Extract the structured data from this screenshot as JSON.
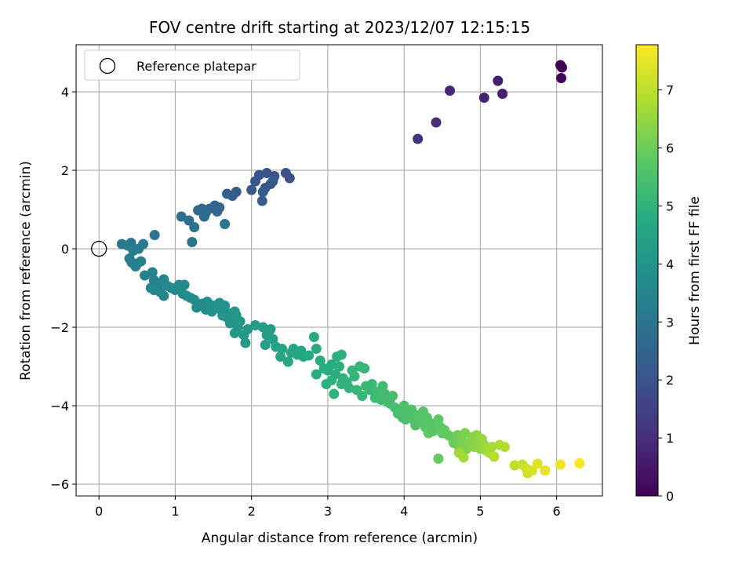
{
  "chart_data": {
    "type": "scatter",
    "title": "FOV centre drift starting at 2023/12/07 12:15:15",
    "xlabel": "Angular distance from reference (arcmin)",
    "ylabel": "Rotation from reference (arcmin)",
    "xlim": [
      -0.3,
      6.6
    ],
    "ylim": [
      -6.3,
      5.2
    ],
    "xticks": [
      0,
      1,
      2,
      3,
      4,
      5,
      6
    ],
    "yticks": [
      -6,
      -4,
      -2,
      0,
      2,
      4
    ],
    "grid": true,
    "colormap": "viridis",
    "colorbar": {
      "label": "Hours from first FF file",
      "range": [
        0,
        7.78
      ],
      "ticks": [
        0,
        1,
        2,
        3,
        4,
        5,
        6,
        7
      ]
    },
    "legend": {
      "placement": "top-left",
      "entries": [
        {
          "label": "Reference platepar",
          "marker": "open-circle",
          "color": "#000000"
        }
      ]
    },
    "reference_point": {
      "x": 0,
      "y": 0
    },
    "points": [
      [
        6.05,
        4.68,
        0.0
      ],
      [
        6.07,
        4.62,
        0.03
      ],
      [
        6.06,
        4.35,
        0.08
      ],
      [
        5.23,
        4.28,
        0.6
      ],
      [
        5.29,
        3.95,
        0.68
      ],
      [
        5.05,
        3.85,
        0.75
      ],
      [
        4.6,
        4.03,
        0.85
      ],
      [
        4.42,
        3.22,
        1.0
      ],
      [
        4.18,
        2.8,
        1.1
      ],
      [
        2.45,
        1.93,
        1.9
      ],
      [
        2.5,
        1.8,
        1.95
      ],
      [
        2.3,
        1.85,
        2.0
      ],
      [
        2.2,
        1.93,
        2.02
      ],
      [
        2.1,
        1.88,
        2.05
      ],
      [
        2.05,
        1.72,
        2.08
      ],
      [
        2.25,
        1.65,
        2.1
      ],
      [
        2.18,
        1.55,
        2.12
      ],
      [
        2.0,
        1.5,
        2.15
      ],
      [
        2.28,
        1.72,
        2.18
      ],
      [
        2.15,
        1.45,
        2.2
      ],
      [
        2.14,
        1.22,
        2.25
      ],
      [
        1.8,
        1.45,
        2.3
      ],
      [
        1.75,
        1.35,
        2.32
      ],
      [
        1.68,
        1.4,
        2.35
      ],
      [
        1.45,
        1.02,
        2.5
      ],
      [
        1.52,
        1.1,
        2.52
      ],
      [
        1.58,
        1.05,
        2.55
      ],
      [
        1.55,
        0.95,
        2.58
      ],
      [
        1.35,
        1.02,
        2.6
      ],
      [
        1.3,
        0.98,
        2.65
      ],
      [
        1.4,
        0.92,
        2.68
      ],
      [
        1.38,
        0.82,
        2.7
      ],
      [
        1.08,
        0.82,
        2.8
      ],
      [
        1.18,
        0.72,
        2.85
      ],
      [
        1.25,
        0.55,
        2.9
      ],
      [
        1.22,
        0.17,
        2.95
      ],
      [
        1.65,
        0.63,
        2.98
      ],
      [
        0.73,
        0.35,
        3.05
      ],
      [
        0.58,
        0.12,
        3.1
      ],
      [
        0.42,
        0.15,
        3.12
      ],
      [
        0.3,
        0.12,
        3.15
      ],
      [
        0.38,
        0.08,
        3.18
      ],
      [
        0.52,
        0.0,
        3.2
      ],
      [
        0.45,
        -0.05,
        3.22
      ],
      [
        0.4,
        -0.25,
        3.25
      ],
      [
        0.43,
        -0.35,
        3.28
      ],
      [
        0.5,
        -0.38,
        3.3
      ],
      [
        0.55,
        -0.32,
        3.32
      ],
      [
        0.48,
        -0.45,
        3.35
      ],
      [
        0.6,
        -0.68,
        3.4
      ],
      [
        0.7,
        -0.6,
        3.42
      ],
      [
        0.72,
        -0.8,
        3.45
      ],
      [
        0.78,
        -0.9,
        3.48
      ],
      [
        0.68,
        -1.0,
        3.5
      ],
      [
        0.85,
        -0.78,
        3.52
      ],
      [
        0.72,
        -1.05,
        3.54
      ],
      [
        0.8,
        -1.1,
        3.56
      ],
      [
        0.85,
        -1.2,
        3.58
      ],
      [
        0.9,
        -0.95,
        3.6
      ],
      [
        0.95,
        -1.0,
        3.62
      ],
      [
        1.05,
        -0.92,
        3.64
      ],
      [
        1.0,
        -1.05,
        3.66
      ],
      [
        1.12,
        -0.92,
        3.68
      ],
      [
        1.1,
        -1.15,
        3.7
      ],
      [
        1.15,
        -1.2,
        3.72
      ],
      [
        1.2,
        -1.25,
        3.74
      ],
      [
        1.25,
        -1.3,
        3.76
      ],
      [
        1.28,
        -1.5,
        3.78
      ],
      [
        1.35,
        -1.4,
        3.8
      ],
      [
        1.42,
        -1.35,
        3.82
      ],
      [
        1.4,
        -1.55,
        3.84
      ],
      [
        1.48,
        -1.6,
        3.86
      ],
      [
        1.5,
        -1.45,
        3.88
      ],
      [
        1.55,
        -1.5,
        3.9
      ],
      [
        1.58,
        -1.38,
        3.92
      ],
      [
        1.6,
        -1.55,
        3.94
      ],
      [
        1.65,
        -1.45,
        3.96
      ],
      [
        1.62,
        -1.7,
        3.98
      ],
      [
        1.68,
        -1.75,
        4.0
      ],
      [
        1.7,
        -1.65,
        4.02
      ],
      [
        1.75,
        -1.8,
        4.04
      ],
      [
        1.72,
        -1.9,
        4.06
      ],
      [
        1.78,
        -1.6,
        4.08
      ],
      [
        1.8,
        -1.7,
        4.1
      ],
      [
        1.85,
        -1.85,
        4.12
      ],
      [
        1.82,
        -2.0,
        4.14
      ],
      [
        1.78,
        -2.15,
        4.16
      ],
      [
        1.9,
        -2.2,
        4.18
      ],
      [
        1.95,
        -2.05,
        4.2
      ],
      [
        1.92,
        -2.4,
        4.22
      ],
      [
        2.05,
        -1.95,
        4.26
      ],
      [
        2.15,
        -2.0,
        4.3
      ],
      [
        2.2,
        -2.2,
        4.34
      ],
      [
        2.25,
        -2.05,
        4.36
      ],
      [
        2.18,
        -2.45,
        4.38
      ],
      [
        2.28,
        -2.3,
        4.4
      ],
      [
        2.32,
        -2.5,
        4.44
      ],
      [
        2.4,
        -2.55,
        4.48
      ],
      [
        2.38,
        -2.75,
        4.52
      ],
      [
        2.48,
        -2.88,
        4.56
      ],
      [
        2.52,
        -2.65,
        4.58
      ],
      [
        2.55,
        -2.55,
        4.6
      ],
      [
        2.6,
        -2.7,
        4.62
      ],
      [
        2.65,
        -2.6,
        4.64
      ],
      [
        2.68,
        -2.75,
        4.66
      ],
      [
        2.75,
        -2.72,
        4.7
      ],
      [
        2.82,
        -2.25,
        4.72
      ],
      [
        2.85,
        -2.55,
        4.74
      ],
      [
        2.9,
        -2.85,
        4.76
      ],
      [
        2.85,
        -3.2,
        4.78
      ],
      [
        2.95,
        -3.05,
        4.8
      ],
      [
        3.0,
        -3.1,
        4.82
      ],
      [
        3.05,
        -2.95,
        4.84
      ],
      [
        3.1,
        -3.2,
        4.86
      ],
      [
        3.15,
        -3.0,
        4.88
      ],
      [
        3.12,
        -2.75,
        4.9
      ],
      [
        3.18,
        -2.7,
        4.92
      ],
      [
        2.98,
        -3.45,
        4.94
      ],
      [
        3.05,
        -3.35,
        4.96
      ],
      [
        3.08,
        -3.7,
        4.98
      ],
      [
        3.18,
        -3.45,
        5.0
      ],
      [
        3.2,
        -3.3,
        5.02
      ],
      [
        3.25,
        -3.4,
        5.04
      ],
      [
        3.28,
        -3.55,
        5.06
      ],
      [
        3.35,
        -3.25,
        5.08
      ],
      [
        3.32,
        -3.1,
        5.1
      ],
      [
        3.42,
        -3.0,
        5.12
      ],
      [
        3.48,
        -3.05,
        5.14
      ],
      [
        3.38,
        -3.6,
        5.16
      ],
      [
        3.45,
        -3.75,
        5.18
      ],
      [
        3.5,
        -3.5,
        5.2
      ],
      [
        3.55,
        -3.6,
        5.22
      ],
      [
        3.58,
        -3.45,
        5.24
      ],
      [
        3.62,
        -3.8,
        5.26
      ],
      [
        3.65,
        -3.65,
        5.28
      ],
      [
        3.7,
        -3.85,
        5.3
      ],
      [
        3.72,
        -3.5,
        5.32
      ],
      [
        3.75,
        -3.7,
        5.34
      ],
      [
        3.78,
        -3.9,
        5.36
      ],
      [
        3.82,
        -3.95,
        5.38
      ],
      [
        3.85,
        -3.75,
        5.4
      ],
      [
        3.88,
        -4.05,
        5.42
      ],
      [
        3.92,
        -4.2,
        5.44
      ],
      [
        3.95,
        -4.1,
        5.46
      ],
      [
        3.98,
        -4.3,
        5.48
      ],
      [
        4.02,
        -4.35,
        5.5
      ],
      [
        4.05,
        -4.2,
        5.52
      ],
      [
        4.0,
        -4.0,
        5.54
      ],
      [
        4.1,
        -4.1,
        5.56
      ],
      [
        4.12,
        -4.35,
        5.58
      ],
      [
        4.15,
        -4.5,
        5.6
      ],
      [
        4.18,
        -4.25,
        5.62
      ],
      [
        4.22,
        -4.4,
        5.64
      ],
      [
        4.25,
        -4.15,
        5.66
      ],
      [
        4.28,
        -4.55,
        5.68
      ],
      [
        4.3,
        -4.3,
        5.7
      ],
      [
        4.35,
        -4.45,
        5.72
      ],
      [
        4.38,
        -4.65,
        5.74
      ],
      [
        4.32,
        -4.7,
        5.76
      ],
      [
        4.42,
        -4.6,
        5.78
      ],
      [
        4.45,
        -4.35,
        5.8
      ],
      [
        4.48,
        -4.55,
        5.82
      ],
      [
        4.5,
        -4.7,
        5.84
      ],
      [
        4.53,
        -4.62,
        5.86
      ],
      [
        4.58,
        -4.75,
        5.88
      ],
      [
        4.62,
        -4.8,
        5.9
      ],
      [
        4.45,
        -5.35,
        5.92
      ],
      [
        4.65,
        -4.95,
        6.0
      ],
      [
        4.7,
        -4.75,
        6.04
      ],
      [
        4.72,
        -5.05,
        6.08
      ],
      [
        4.75,
        -4.85,
        6.12
      ],
      [
        4.78,
        -5.0,
        6.16
      ],
      [
        4.8,
        -4.7,
        6.2
      ],
      [
        4.82,
        -5.1,
        6.24
      ],
      [
        4.85,
        -4.95,
        6.28
      ],
      [
        4.9,
        -4.8,
        6.32
      ],
      [
        4.92,
        -5.05,
        6.36
      ],
      [
        4.95,
        -4.75,
        6.4
      ],
      [
        4.98,
        -4.9,
        6.44
      ],
      [
        5.0,
        -5.1,
        6.48
      ],
      [
        5.02,
        -4.85,
        6.52
      ],
      [
        5.05,
        -5.0,
        6.56
      ],
      [
        5.08,
        -5.15,
        6.6
      ],
      [
        4.72,
        -5.2,
        6.64
      ],
      [
        4.78,
        -5.32,
        6.68
      ],
      [
        5.12,
        -5.2,
        6.72
      ],
      [
        5.15,
        -5.05,
        6.76
      ],
      [
        5.25,
        -5.0,
        6.8
      ],
      [
        5.32,
        -5.05,
        6.84
      ],
      [
        5.18,
        -5.3,
        6.88
      ],
      [
        5.45,
        -5.52,
        7.0
      ],
      [
        5.55,
        -5.5,
        7.1
      ],
      [
        5.62,
        -5.72,
        7.2
      ],
      [
        5.6,
        -5.6,
        7.25
      ],
      [
        5.68,
        -5.65,
        7.3
      ],
      [
        5.75,
        -5.48,
        7.4
      ],
      [
        5.85,
        -5.65,
        7.5
      ],
      [
        6.05,
        -5.5,
        7.6
      ],
      [
        6.3,
        -5.47,
        7.7
      ]
    ]
  }
}
